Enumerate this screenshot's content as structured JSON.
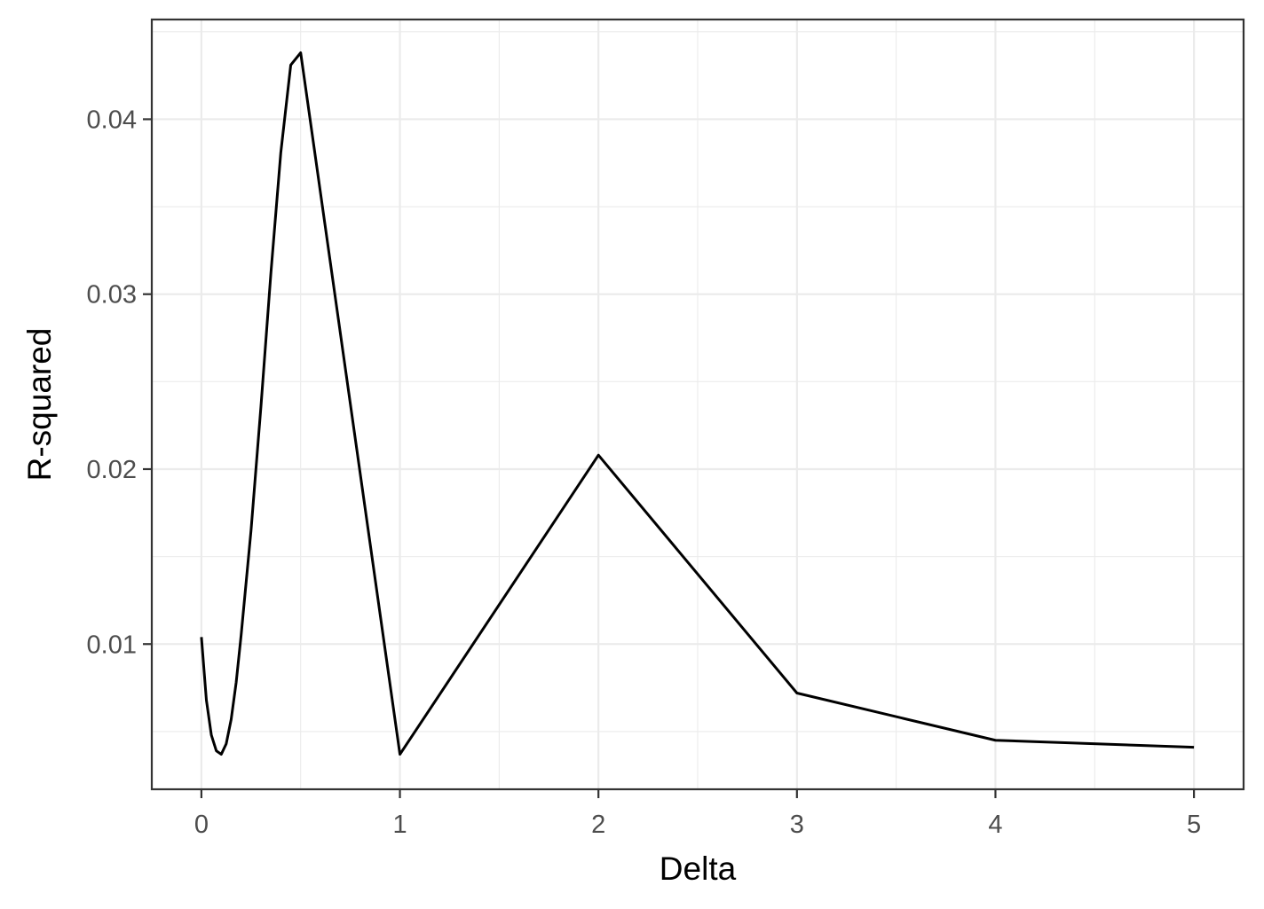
{
  "chart_data": {
    "type": "line",
    "title": "",
    "xlabel": "Delta",
    "ylabel": "R-squared",
    "xlim": [
      -0.25,
      5.25
    ],
    "ylim": [
      0.0017,
      0.0457
    ],
    "x_ticks": [
      0,
      1,
      2,
      3,
      4,
      5
    ],
    "x_tick_labels": [
      "0",
      "1",
      "2",
      "3",
      "4",
      "5"
    ],
    "x_minor_ticks": [
      0.5,
      1.5,
      2.5,
      3.5,
      4.5
    ],
    "y_ticks": [
      0.01,
      0.02,
      0.03,
      0.04
    ],
    "y_tick_labels": [
      "0.01",
      "0.02",
      "0.03",
      "0.04"
    ],
    "y_minor_ticks": [
      0.005,
      0.015,
      0.025,
      0.035,
      0.045
    ],
    "grid": true,
    "legend": "none",
    "line_color": "#000000",
    "grid_color": "#ebebeb",
    "panel_border_color": "#333333",
    "series": [
      {
        "x": [
          0,
          0.025,
          0.05,
          0.075,
          0.1,
          0.125,
          0.15,
          0.175,
          0.2,
          0.25,
          0.3,
          0.35,
          0.4,
          0.45,
          0.5,
          1,
          2,
          3,
          4,
          5
        ],
        "values": [
          0.0104,
          0.0068,
          0.0048,
          0.0039,
          0.0037,
          0.0043,
          0.0057,
          0.0078,
          0.0105,
          0.0165,
          0.0236,
          0.0312,
          0.0381,
          0.0431,
          0.0438,
          0.0037,
          0.0208,
          0.0072,
          0.0045,
          0.0041
        ]
      }
    ]
  }
}
